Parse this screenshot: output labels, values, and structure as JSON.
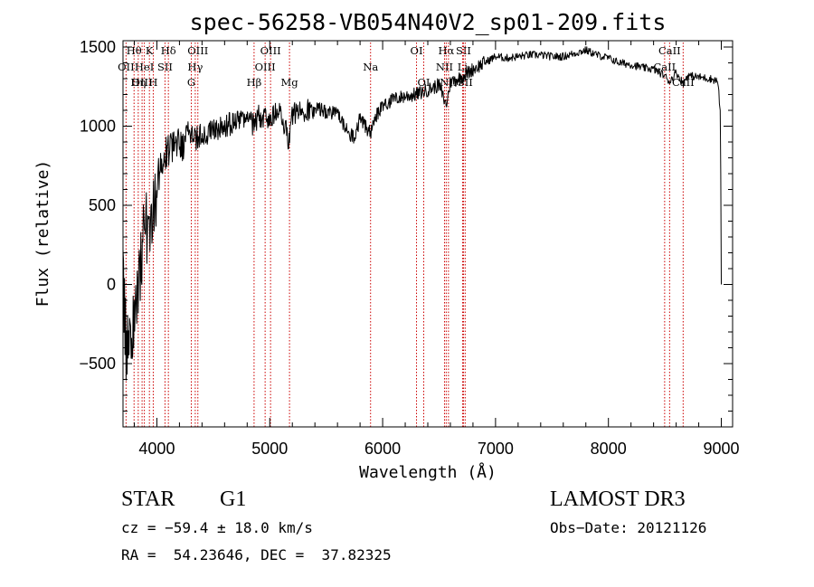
{
  "chart_data": {
    "type": "line",
    "title": "spec-56258-VB054N40V2_sp01-209.fits",
    "xlabel": "Wavelength (Å)",
    "ylabel": "Flux (relative)",
    "xlim": [
      3700,
      9100
    ],
    "ylim": [
      -900,
      1540
    ],
    "x_ticks": [
      4000,
      5000,
      6000,
      7000,
      8000,
      9000
    ],
    "y_ticks": [
      -500,
      0,
      500,
      1000,
      1500
    ],
    "x_tick_labels": [
      "4000",
      "5000",
      "6000",
      "7000",
      "8000",
      "9000"
    ],
    "y_tick_labels": [
      "−500",
      "0",
      "500",
      "1000",
      "1500"
    ],
    "spectrum_anchors": {
      "wavelength": [
        3700,
        3720,
        3750,
        3780,
        3810,
        3850,
        3890,
        3930,
        3965,
        4000,
        4050,
        4100,
        4150,
        4200,
        4250,
        4300,
        4350,
        4400,
        4450,
        4500,
        4600,
        4700,
        4800,
        4860,
        4900,
        5000,
        5100,
        5175,
        5200,
        5300,
        5400,
        5500,
        5600,
        5700,
        5750,
        5800,
        5893,
        5950,
        6000,
        6100,
        6200,
        6300,
        6400,
        6500,
        6563,
        6600,
        6700,
        6800,
        6900,
        7000,
        7100,
        7200,
        7300,
        7400,
        7500,
        7600,
        7700,
        7800,
        7900,
        8000,
        8100,
        8200,
        8300,
        8400,
        8498,
        8542,
        8600,
        8662,
        8700,
        8800,
        8900,
        8950,
        8970,
        8990,
        9000
      ],
      "flux": [
        0,
        -300,
        -500,
        -350,
        -150,
        100,
        300,
        450,
        500,
        650,
        780,
        850,
        870,
        880,
        900,
        950,
        920,
        960,
        960,
        980,
        1000,
        1030,
        1050,
        1000,
        1060,
        1060,
        1080,
        900,
        1080,
        1100,
        1120,
        1090,
        1080,
        950,
        930,
        1050,
        950,
        1070,
        1130,
        1170,
        1190,
        1200,
        1230,
        1260,
        1130,
        1280,
        1310,
        1360,
        1400,
        1440,
        1430,
        1440,
        1450,
        1450,
        1440,
        1440,
        1460,
        1480,
        1450,
        1430,
        1400,
        1390,
        1370,
        1360,
        1320,
        1280,
        1340,
        1270,
        1320,
        1310,
        1300,
        1290,
        1280,
        1100,
        0
      ]
    },
    "line_markers": [
      {
        "label": "Hθ",
        "wavelength": 3798,
        "row": 0
      },
      {
        "label": "OII",
        "wavelength": 3727,
        "row": 1
      },
      {
        "label": "OIII",
        "wavelength": 3869,
        "row": 2
      },
      {
        "label": "K",
        "wavelength": 3934,
        "row": 0
      },
      {
        "label": "HeI",
        "wavelength": 3889,
        "row": 1
      },
      {
        "label": "Hη",
        "wavelength": 3835,
        "row": 2
      },
      {
        "label": "SII",
        "wavelength": 4072,
        "row": 1
      },
      {
        "label": "H",
        "wavelength": 3968,
        "row": 2
      },
      {
        "label": "Hδ",
        "wavelength": 4102,
        "row": 0
      },
      {
        "label": "OIII",
        "wavelength": 4363,
        "row": 0
      },
      {
        "label": "Hγ",
        "wavelength": 4340,
        "row": 1
      },
      {
        "label": "G",
        "wavelength": 4305,
        "row": 2
      },
      {
        "label": "Hβ",
        "wavelength": 4861,
        "row": 2
      },
      {
        "label": "OIII",
        "wavelength": 5007,
        "row": 0
      },
      {
        "label": "OIII",
        "wavelength": 4959,
        "row": 1
      },
      {
        "label": "Mg",
        "wavelength": 5175,
        "row": 2
      },
      {
        "label": "Na",
        "wavelength": 5893,
        "row": 1
      },
      {
        "label": "OI",
        "wavelength": 6300,
        "row": 0
      },
      {
        "label": "OI",
        "wavelength": 6364,
        "row": 2
      },
      {
        "label": "Hα",
        "wavelength": 6563,
        "row": 0
      },
      {
        "label": "NII",
        "wavelength": 6548,
        "row": 1
      },
      {
        "label": "NII",
        "wavelength": 6583,
        "row": 2
      },
      {
        "label": "SII",
        "wavelength": 6716,
        "row": 0
      },
      {
        "label": "Li",
        "wavelength": 6708,
        "row": 1
      },
      {
        "label": "SII",
        "wavelength": 6731,
        "row": 2
      },
      {
        "label": "CaII",
        "wavelength": 8542,
        "row": 0
      },
      {
        "label": "CaII",
        "wavelength": 8498,
        "row": 1
      },
      {
        "label": "CaII",
        "wavelength": 8662,
        "row": 2
      }
    ]
  },
  "info": {
    "object_class": "STAR",
    "subclass": "G1",
    "survey": "LAMOST DR3",
    "cz": "cz = −59.4 ± 18.0 km/s",
    "obs_date": "Obs−Date: 20121126",
    "coords": "RA =  54.23646, DEC =  37.82325"
  },
  "colors": {
    "spectrum": "#000000",
    "line_markers": "#cc0000",
    "axes": "#000000",
    "background": "#ffffff"
  }
}
